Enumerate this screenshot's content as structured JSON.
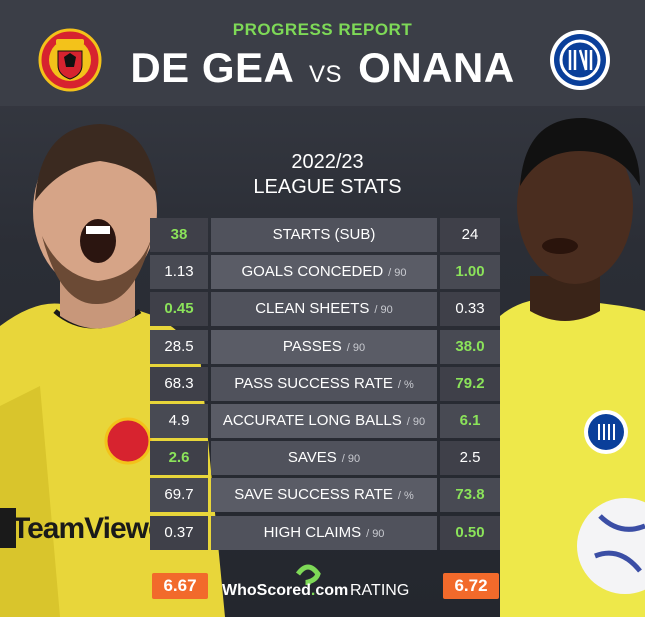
{
  "header": {
    "subtitle": "PROGRESS REPORT",
    "player_left": "DE GEA",
    "vs": "VS",
    "player_right": "ONANA"
  },
  "season": {
    "line1": "2022/23",
    "line2": "LEAGUE STATS"
  },
  "stats": [
    {
      "left": "38",
      "label": "STARTS (SUB)",
      "unit": "",
      "right": "24",
      "winner": "left"
    },
    {
      "left": "1.13",
      "label": "GOALS CONCEDED",
      "unit": "/ 90",
      "right": "1.00",
      "winner": "right"
    },
    {
      "left": "0.45",
      "label": "CLEAN SHEETS",
      "unit": "/ 90",
      "right": "0.33",
      "winner": "left"
    },
    {
      "left": "28.5",
      "label": "PASSES",
      "unit": "/ 90",
      "right": "38.0",
      "winner": "right"
    },
    {
      "left": "68.3",
      "label": "PASS SUCCESS RATE",
      "unit": "/ %",
      "right": "79.2",
      "winner": "right"
    },
    {
      "left": "4.9",
      "label": "ACCURATE LONG BALLS",
      "unit": "/ 90",
      "right": "6.1",
      "winner": "right"
    },
    {
      "left": "2.6",
      "label": "SAVES",
      "unit": "/ 90",
      "right": "2.5",
      "winner": "left"
    },
    {
      "left": "69.7",
      "label": "SAVE SUCCESS RATE",
      "unit": "/ %",
      "right": "73.8",
      "winner": "right"
    },
    {
      "left": "0.37",
      "label": "HIGH CLAIMS",
      "unit": "/ 90",
      "right": "0.50",
      "winner": "right"
    }
  ],
  "footer": {
    "rating_left": "6.67",
    "brand_who": "WhoScored",
    "brand_dot": ".",
    "brand_com": "com",
    "rating_label": "RATING",
    "rating_right": "6.72"
  },
  "sponsor_text": "TeamViewer",
  "icons": {
    "left_crest": "manchester-united-crest",
    "right_crest": "inter-milan-crest"
  },
  "colors": {
    "accent_green": "#7ed957",
    "winner_green": "#8be35a",
    "rating_orange": "#f26a2b",
    "kit_yellow": "#e8d63a"
  }
}
